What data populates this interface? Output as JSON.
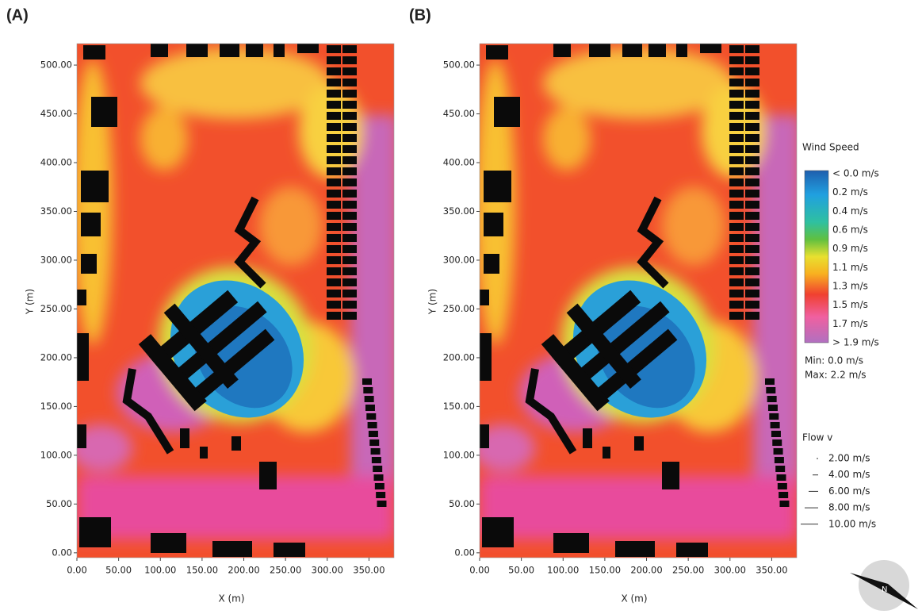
{
  "chart_data": [
    {
      "type": "heatmap",
      "panel_label": "(A)",
      "xlabel": "X (m)",
      "ylabel": "Y (m)",
      "xlim": [
        0,
        380
      ],
      "ylim": [
        -5,
        522
      ],
      "xticks": [
        {
          "value": 0,
          "label": "0.00"
        },
        {
          "value": 50,
          "label": "50.00"
        },
        {
          "value": 100,
          "label": "100.00"
        },
        {
          "value": 150,
          "label": "150.00"
        },
        {
          "value": 200,
          "label": "200.00"
        },
        {
          "value": 250,
          "label": "250.00"
        },
        {
          "value": 300,
          "label": "300.00"
        },
        {
          "value": 350,
          "label": "350.00"
        }
      ],
      "yticks": [
        {
          "value": 0,
          "label": "0.00"
        },
        {
          "value": 50,
          "label": "50.00"
        },
        {
          "value": 100,
          "label": "100.00"
        },
        {
          "value": 150,
          "label": "150.00"
        },
        {
          "value": 200,
          "label": "200.00"
        },
        {
          "value": 250,
          "label": "250.00"
        },
        {
          "value": 300,
          "label": "300.00"
        },
        {
          "value": 350,
          "label": "350.00"
        },
        {
          "value": 400,
          "label": "400.00"
        },
        {
          "value": 450,
          "label": "450.00"
        },
        {
          "value": 500,
          "label": "500.00"
        }
      ]
    },
    {
      "type": "heatmap",
      "panel_label": "(B)",
      "xlabel": "X (m)",
      "ylabel": "Y (m)",
      "xlim": [
        0,
        380
      ],
      "ylim": [
        -5,
        522
      ],
      "xticks": [
        {
          "value": 0,
          "label": "0.00"
        },
        {
          "value": 50,
          "label": "50.00"
        },
        {
          "value": 100,
          "label": "100.00"
        },
        {
          "value": 150,
          "label": "150.00"
        },
        {
          "value": 200,
          "label": "200.00"
        },
        {
          "value": 250,
          "label": "250.00"
        },
        {
          "value": 300,
          "label": "300.00"
        },
        {
          "value": 350,
          "label": "350.00"
        }
      ],
      "yticks": [
        {
          "value": 0,
          "label": "0.00"
        },
        {
          "value": 50,
          "label": "50.00"
        },
        {
          "value": 100,
          "label": "100.00"
        },
        {
          "value": 150,
          "label": "150.00"
        },
        {
          "value": 200,
          "label": "200.00"
        },
        {
          "value": 250,
          "label": "250.00"
        },
        {
          "value": 300,
          "label": "300.00"
        },
        {
          "value": 350,
          "label": "350.00"
        },
        {
          "value": 400,
          "label": "400.00"
        },
        {
          "value": 450,
          "label": "450.00"
        },
        {
          "value": 500,
          "label": "500.00"
        }
      ]
    }
  ],
  "legend": {
    "title": "Wind Speed",
    "levels": [
      "< 0.0 m/s",
      "0.2  m/s",
      "0.4  m/s",
      "0.6  m/s",
      "0.9  m/s",
      "1.1  m/s",
      "1.3  m/s",
      "1.5  m/s",
      "1.7  m/s",
      "> 1.9 m/s"
    ],
    "min": "Min: 0.0 m/s",
    "max": "Max: 2.2 m/s",
    "flow_title": "Flow v",
    "flow": [
      "2.00 m/s",
      "4.00 m/s",
      "6.00 m/s",
      "8.00 m/s",
      "10.00 m/s"
    ],
    "north": "N"
  }
}
